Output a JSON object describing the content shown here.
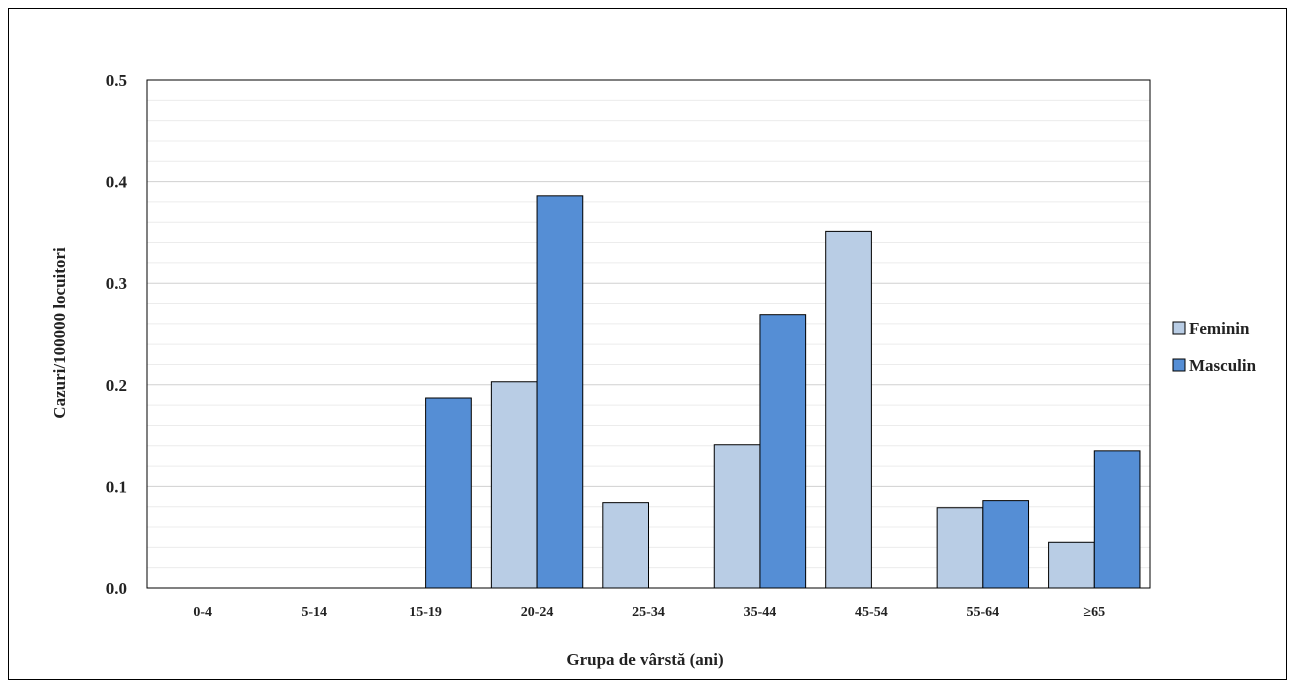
{
  "chart_data": {
    "type": "bar",
    "xlabel": "Grupa  de vârstă (ani)",
    "ylabel": "Cazuri/100000  locuitori",
    "ylim": [
      0,
      0.5
    ],
    "yticks": [
      "0.0",
      "0.1",
      "0.2",
      "0.3",
      "0.4",
      "0.5"
    ],
    "categories": [
      "0-4",
      "5-14",
      "15-19",
      "20-24",
      "25-34",
      "35-44",
      "45-54",
      "55-64",
      "≥65"
    ],
    "series": [
      {
        "name": "Feminin",
        "color": "#b9cde5",
        "values": [
          0,
          0,
          0,
          0.203,
          0.084,
          0.141,
          0.351,
          0.079,
          0.045
        ]
      },
      {
        "name": "Masculin",
        "color": "#558ed5",
        "values": [
          0,
          0,
          0.187,
          0.386,
          0,
          0.269,
          0,
          0.086,
          0.135
        ]
      }
    ],
    "grid": true,
    "legend": "right"
  }
}
